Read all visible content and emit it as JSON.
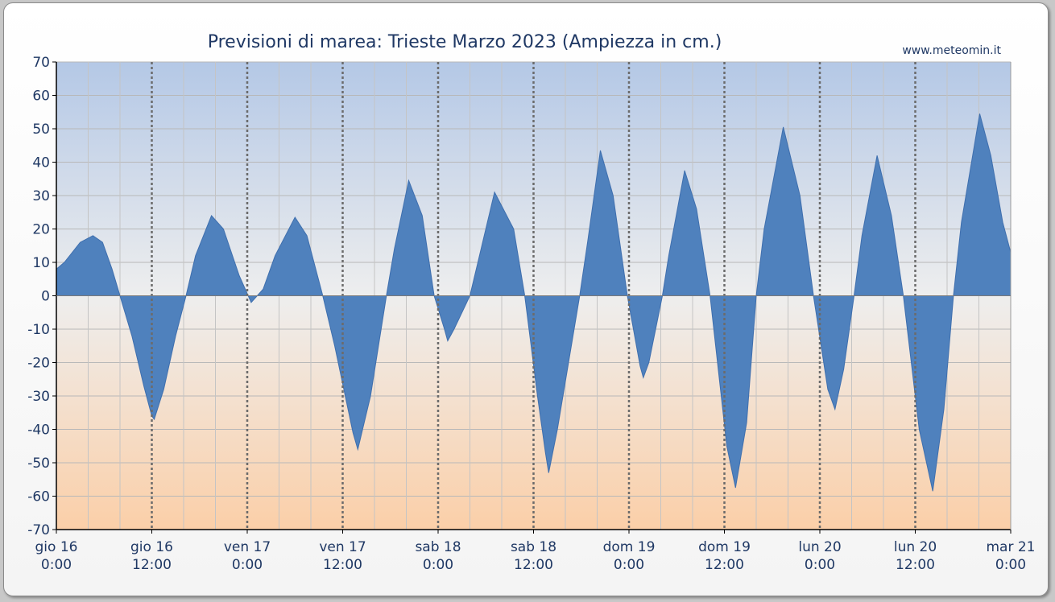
{
  "chart_data": {
    "type": "area",
    "title": "Previsioni di marea: Trieste Marzo 2023 (Ampiezza in cm.)",
    "source": "www.meteomin.it",
    "ylim": [
      -70,
      70
    ],
    "yticks": [
      70,
      60,
      50,
      40,
      30,
      20,
      10,
      0,
      -10,
      -20,
      -30,
      -40,
      -50,
      -60,
      -70
    ],
    "xlim": [
      0,
      120
    ],
    "x_unit": "hours",
    "xticks": [
      {
        "x": 0,
        "day": "gio",
        "date": "16",
        "time": "0:00"
      },
      {
        "x": 12,
        "day": "gio",
        "date": "16",
        "time": "12:00"
      },
      {
        "x": 24,
        "day": "ven",
        "date": "17",
        "time": "0:00"
      },
      {
        "x": 36,
        "day": "ven",
        "date": "17",
        "time": "12:00"
      },
      {
        "x": 48,
        "day": "sab",
        "date": "18",
        "time": "0:00"
      },
      {
        "x": 60,
        "day": "sab",
        "date": "18",
        "time": "12:00"
      },
      {
        "x": 72,
        "day": "dom",
        "date": "19",
        "time": "0:00"
      },
      {
        "x": 84,
        "day": "dom",
        "date": "19",
        "time": "12:00"
      },
      {
        "x": 96,
        "day": "lun",
        "date": "20",
        "time": "0:00"
      },
      {
        "x": 108,
        "day": "lun",
        "date": "20",
        "time": "12:00"
      },
      {
        "x": 120,
        "day": "mar",
        "date": "21",
        "time": "0:00"
      }
    ],
    "grid": true,
    "fill_color": "#4f81bd",
    "series": [
      {
        "points": [
          [
            0,
            8
          ],
          [
            1.0,
            10
          ],
          [
            2.0,
            13
          ],
          [
            3.0,
            16
          ],
          [
            4.6,
            18
          ],
          [
            5.8,
            16
          ],
          [
            7.0,
            8
          ],
          [
            8.0,
            0
          ],
          [
            9.5,
            -12
          ],
          [
            11.0,
            -27
          ],
          [
            12.0,
            -36
          ],
          [
            12.3,
            -37
          ],
          [
            13.5,
            -28
          ],
          [
            15.0,
            -12
          ],
          [
            16.3,
            0
          ],
          [
            17.5,
            12
          ],
          [
            19.5,
            24
          ],
          [
            21.0,
            20
          ],
          [
            23.0,
            6
          ],
          [
            24.5,
            -2
          ],
          [
            26.0,
            2
          ],
          [
            27.5,
            12
          ],
          [
            30.0,
            23.5
          ],
          [
            31.5,
            18
          ],
          [
            33.5,
            0
          ],
          [
            35.0,
            -15
          ],
          [
            37.3,
            -41
          ],
          [
            37.9,
            -46
          ],
          [
            39.5,
            -30
          ],
          [
            41.5,
            0
          ],
          [
            42.5,
            14
          ],
          [
            44.3,
            34.5
          ],
          [
            46.0,
            24
          ],
          [
            47.5,
            0
          ],
          [
            48.8,
            -10
          ],
          [
            49.2,
            -13.5
          ],
          [
            50.0,
            -10
          ],
          [
            52.0,
            0
          ],
          [
            53.0,
            10
          ],
          [
            55.1,
            31
          ],
          [
            57.5,
            20
          ],
          [
            58.9,
            0
          ],
          [
            60.5,
            -30
          ],
          [
            61.5,
            -47
          ],
          [
            61.9,
            -53
          ],
          [
            63.0,
            -40
          ],
          [
            65.8,
            0
          ],
          [
            66.8,
            16
          ],
          [
            68.4,
            43.5
          ],
          [
            70.0,
            30
          ],
          [
            71.8,
            0
          ],
          [
            73.4,
            -21
          ],
          [
            73.8,
            -24.5
          ],
          [
            74.5,
            -20
          ],
          [
            76.2,
            0
          ],
          [
            77.0,
            12
          ],
          [
            79.0,
            37.5
          ],
          [
            80.5,
            26
          ],
          [
            82.2,
            0
          ],
          [
            84.3,
            -45
          ],
          [
            85.4,
            -57.5
          ],
          [
            86.8,
            -38
          ],
          [
            88.0,
            0
          ],
          [
            89.0,
            20
          ],
          [
            91.4,
            50.5
          ],
          [
            93.5,
            30
          ],
          [
            95.2,
            0
          ],
          [
            97.0,
            -28
          ],
          [
            97.9,
            -34
          ],
          [
            99.0,
            -22
          ],
          [
            100.3,
            0
          ],
          [
            101.3,
            18
          ],
          [
            103.2,
            42
          ],
          [
            105.0,
            24
          ],
          [
            106.5,
            0
          ],
          [
            108.5,
            -40
          ],
          [
            110.2,
            -58.5
          ],
          [
            111.6,
            -34
          ],
          [
            112.8,
            0
          ],
          [
            113.8,
            22
          ],
          [
            116.1,
            54.5
          ],
          [
            117.5,
            42
          ],
          [
            119.0,
            22
          ],
          [
            120.0,
            13
          ]
        ]
      }
    ]
  }
}
